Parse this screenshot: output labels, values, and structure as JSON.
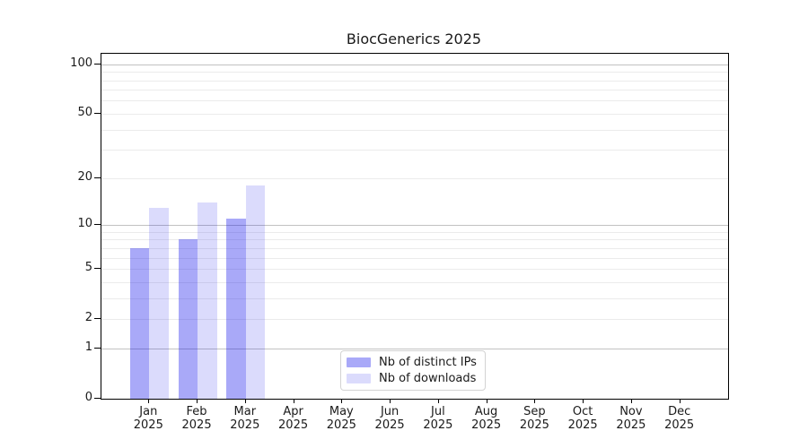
{
  "title": "BiocGenerics 2025",
  "chart_data": {
    "type": "bar",
    "title": "BiocGenerics 2025",
    "categories": [
      "Jan 2025",
      "Feb 2025",
      "Mar 2025",
      "Apr 2025",
      "May 2025",
      "Jun 2025",
      "Jul 2025",
      "Aug 2025",
      "Sep 2025",
      "Oct 2025",
      "Nov 2025",
      "Dec 2025"
    ],
    "series": [
      {
        "name": "Nb of distinct IPs",
        "color": "rgba(10,10,235,0.35)",
        "values": [
          7,
          8,
          11,
          null,
          null,
          null,
          null,
          null,
          null,
          null,
          null,
          null
        ]
      },
      {
        "name": "Nb of downloads",
        "color": "rgba(10,10,235,0.145)",
        "values": [
          13,
          14,
          18,
          null,
          null,
          null,
          null,
          null,
          null,
          null,
          null,
          null
        ]
      }
    ],
    "xlabel": "",
    "ylabel": "",
    "y_scale": "log10(1+y)",
    "y_ticks": [
      0,
      1,
      2,
      5,
      10,
      20,
      50,
      100
    ],
    "y_major_gridlines": [
      1,
      10,
      100
    ],
    "y_minor_gridlines": [
      2,
      3,
      4,
      5,
      6,
      7,
      8,
      9,
      20,
      30,
      40,
      50,
      60,
      70,
      80,
      90
    ],
    "ylim": [
      0,
      115.7
    ],
    "grid": true,
    "legend_position": "inside-bottom-center"
  }
}
